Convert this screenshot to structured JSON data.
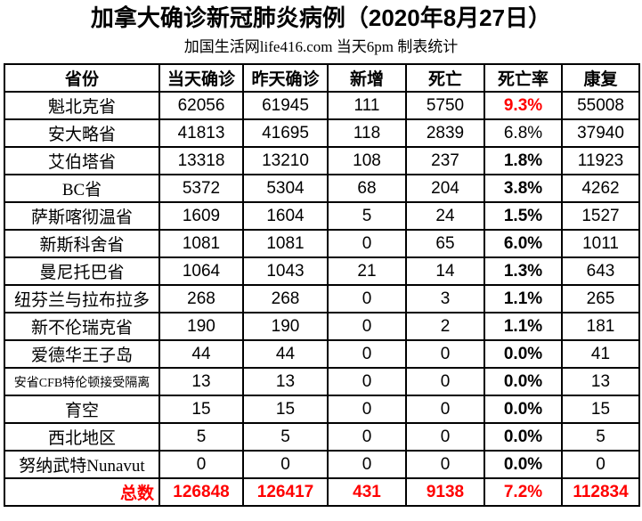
{
  "header": {
    "title": "加拿大确诊新冠肺炎病例（2020年8月27日）",
    "subtitle": "加国生活网life416.com 当天6pm 制表统计"
  },
  "colors": {
    "text": "#000000",
    "accent_red": "#FF0000",
    "border": "#000000",
    "background": "#FFFFFF"
  },
  "table": {
    "columns": [
      "省份",
      "当天确诊",
      "昨天确诊",
      "新增",
      "死亡",
      "死亡率",
      "康复"
    ],
    "rows": [
      {
        "label": "魁北克省",
        "small": false,
        "values": [
          "62056",
          "61945",
          "111",
          "5750",
          "9.3%",
          "55008"
        ],
        "rate_class": "rate-red"
      },
      {
        "label": "安大略省",
        "small": false,
        "values": [
          "41813",
          "41695",
          "118",
          "2839",
          "6.8%",
          "37940"
        ],
        "rate_class": ""
      },
      {
        "label": "艾伯塔省",
        "small": false,
        "values": [
          "13318",
          "13210",
          "108",
          "237",
          "1.8%",
          "11923"
        ],
        "rate_class": "rate-bold"
      },
      {
        "label": "BC省",
        "small": false,
        "values": [
          "5372",
          "5304",
          "68",
          "204",
          "3.8%",
          "4262"
        ],
        "rate_class": "rate-bold"
      },
      {
        "label": "萨斯喀彻温省",
        "small": false,
        "values": [
          "1609",
          "1604",
          "5",
          "24",
          "1.5%",
          "1527"
        ],
        "rate_class": "rate-bold"
      },
      {
        "label": "新斯科舍省",
        "small": false,
        "values": [
          "1081",
          "1081",
          "0",
          "65",
          "6.0%",
          "1011"
        ],
        "rate_class": "rate-bold"
      },
      {
        "label": "曼尼托巴省",
        "small": false,
        "values": [
          "1064",
          "1043",
          "21",
          "14",
          "1.3%",
          "643"
        ],
        "rate_class": "rate-bold"
      },
      {
        "label": "纽芬兰与拉布拉多",
        "small": false,
        "values": [
          "268",
          "268",
          "0",
          "3",
          "1.1%",
          "265"
        ],
        "rate_class": "rate-bold"
      },
      {
        "label": "新不伦瑞克省",
        "small": false,
        "values": [
          "190",
          "190",
          "0",
          "2",
          "1.1%",
          "181"
        ],
        "rate_class": "rate-bold"
      },
      {
        "label": "爱德华王子岛",
        "small": false,
        "values": [
          "44",
          "44",
          "0",
          "0",
          "0.0%",
          "41"
        ],
        "rate_class": "rate-bold"
      },
      {
        "label": "安省CFB特伦顿接受隔离",
        "small": true,
        "values": [
          "13",
          "13",
          "0",
          "0",
          "0.0%",
          "13"
        ],
        "rate_class": "rate-bold"
      },
      {
        "label": "育空",
        "small": false,
        "values": [
          "15",
          "15",
          "0",
          "0",
          "0.0%",
          "15"
        ],
        "rate_class": "rate-bold"
      },
      {
        "label": "西北地区",
        "small": false,
        "values": [
          "5",
          "5",
          "0",
          "0",
          "0.0%",
          "5"
        ],
        "rate_class": "rate-bold"
      },
      {
        "label": "努纳武特Nunavut",
        "small": false,
        "values": [
          "0",
          "0",
          "0",
          "0",
          "0.0%",
          "0"
        ],
        "rate_class": "rate-bold"
      }
    ],
    "total": {
      "label": "总数",
      "values": [
        "126848",
        "126417",
        "431",
        "9138",
        "7.2%",
        "112834"
      ]
    }
  },
  "chart_data": {
    "type": "table",
    "title": "加拿大确诊新冠肺炎病例（2020年8月27日）",
    "subtitle": "加国生活网life416.com 当天6pm 制表统计",
    "columns": [
      "省份",
      "当天确诊",
      "昨天确诊",
      "新增",
      "死亡",
      "死亡率",
      "康复"
    ],
    "rows": [
      [
        "魁北克省",
        62056,
        61945,
        111,
        5750,
        "9.3%",
        55008
      ],
      [
        "安大略省",
        41813,
        41695,
        118,
        2839,
        "6.8%",
        37940
      ],
      [
        "艾伯塔省",
        13318,
        13210,
        108,
        237,
        "1.8%",
        11923
      ],
      [
        "BC省",
        5372,
        5304,
        68,
        204,
        "3.8%",
        4262
      ],
      [
        "萨斯喀彻温省",
        1609,
        1604,
        5,
        24,
        "1.5%",
        1527
      ],
      [
        "新斯科舍省",
        1081,
        1081,
        0,
        65,
        "6.0%",
        1011
      ],
      [
        "曼尼托巴省",
        1064,
        1043,
        21,
        14,
        "1.3%",
        643
      ],
      [
        "纽芬兰与拉布拉多",
        268,
        268,
        0,
        3,
        "1.1%",
        265
      ],
      [
        "新不伦瑞克省",
        190,
        190,
        0,
        2,
        "1.1%",
        181
      ],
      [
        "爱德华王子岛",
        44,
        44,
        0,
        0,
        "0.0%",
        41
      ],
      [
        "安省CFB特伦顿接受隔离",
        13,
        13,
        0,
        0,
        "0.0%",
        13
      ],
      [
        "育空",
        15,
        15,
        0,
        0,
        "0.0%",
        15
      ],
      [
        "西北地区",
        5,
        5,
        0,
        0,
        "0.0%",
        5
      ],
      [
        "努纳武特Nunavut",
        0,
        0,
        0,
        0,
        "0.0%",
        0
      ],
      [
        "总数",
        126848,
        126417,
        431,
        9138,
        "7.2%",
        112834
      ]
    ],
    "notes": "死亡率 column: 9.3% shown red bold; 6.8% regular weight; all other rates bold black. 总数 row entirely red bold."
  }
}
